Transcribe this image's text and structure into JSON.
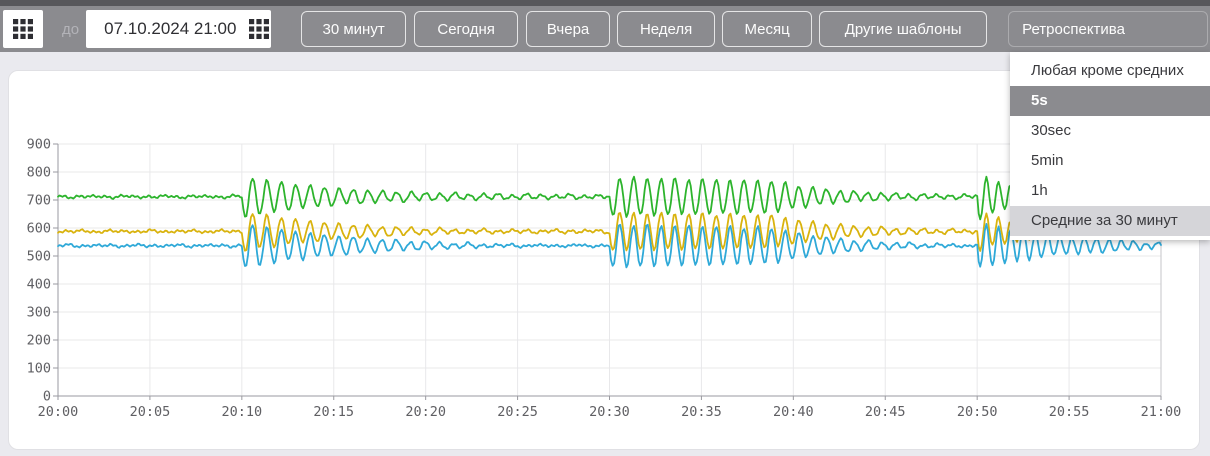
{
  "toolbar": {
    "to_label": "до",
    "datetime_value": "07.10.2024 21:00",
    "buttons": [
      {
        "label": "30 минут"
      },
      {
        "label": "Сегодня"
      },
      {
        "label": "Вчера"
      },
      {
        "label": "Неделя"
      },
      {
        "label": "Месяц"
      },
      {
        "label": "Другие шаблоны"
      }
    ],
    "retrospective_label": "Ретроспектива"
  },
  "dropdown": {
    "items": [
      {
        "label": "Любая кроме средних",
        "state": "normal"
      },
      {
        "label": "5s",
        "state": "selected"
      },
      {
        "label": "30sec",
        "state": "normal"
      },
      {
        "label": "5min",
        "state": "normal"
      },
      {
        "label": "1h",
        "state": "normal"
      },
      {
        "label": "Средние за 30 минут",
        "state": "hover"
      }
    ],
    "selected_bg": "#8b8b8f",
    "hover_bg": "#d5d5d9"
  },
  "chart_data": {
    "type": "line",
    "title": "",
    "xlabel": "",
    "ylabel": "",
    "x_ticks": [
      "20:00",
      "20:05",
      "20:10",
      "20:15",
      "20:20",
      "20:25",
      "20:30",
      "20:35",
      "20:40",
      "20:45",
      "20:50",
      "20:55",
      "21:00"
    ],
    "y_ticks": [
      0,
      100,
      200,
      300,
      400,
      500,
      600,
      700,
      800,
      900
    ],
    "ylim": [
      0,
      900
    ],
    "x_range_minutes": 60,
    "grid": true,
    "legend": "none",
    "sample_interval_s": 5,
    "axis_color": "#9a9aa0",
    "grid_color": "#e8e8ea",
    "right_edge_color": "#c6c6ca",
    "label_color": "#5f5f63",
    "series": [
      {
        "name": "upper-green",
        "color": "#2db42d",
        "baseline": 712,
        "noise_amp": 8,
        "seed": 1
      },
      {
        "name": "middle-yellow",
        "color": "#d9b30e",
        "baseline": 588,
        "noise_amp": 8,
        "seed": 2
      },
      {
        "name": "lower-blue",
        "color": "#2fa9d8",
        "baseline": 537,
        "noise_amp": 8,
        "seed": 3
      }
    ],
    "bursts": [
      {
        "start_min": 10,
        "period_s": 47,
        "amp": [
          78,
          72,
          80
        ],
        "tau_s": [
          350,
          350,
          350
        ],
        "sustain_s": 0,
        "release_s": 0
      },
      {
        "start_min": 30,
        "period_s": 45,
        "amp": [
          75,
          72,
          78
        ],
        "tau_s": [
          2000,
          2000,
          2000
        ],
        "sustain_s": 540,
        "release_s": 240
      },
      {
        "start_min": 50,
        "period_s": 40,
        "amp": [
          90,
          80,
          85
        ],
        "tau_s": [
          150,
          150,
          300
        ],
        "sustain_s": 0,
        "release_s": 0
      }
    ]
  }
}
